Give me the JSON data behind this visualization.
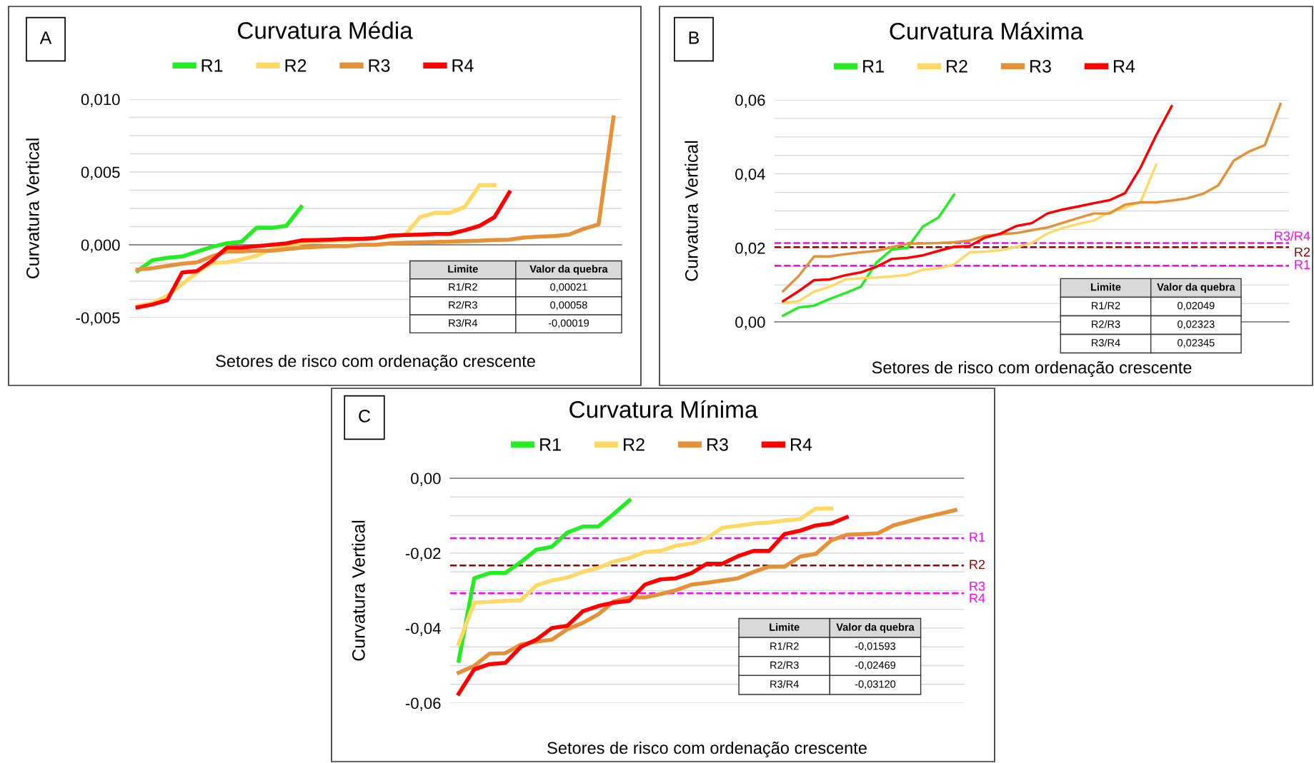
{
  "chart_data": [
    {
      "type": "line",
      "title": "Curvatura Média",
      "xlabel": "Setores de risco com ordenação crescente",
      "ylabel": "Curvatura Vertical",
      "categories": [
        null,
        null,
        null,
        null,
        null,
        null,
        null,
        null,
        null,
        null,
        null,
        null,
        null,
        null,
        null,
        null,
        null,
        null,
        null,
        null,
        null,
        null,
        null,
        null,
        null,
        null,
        null,
        null,
        null,
        null,
        null,
        null,
        null
      ],
      "series": [
        {
          "name": "R1",
          "color": "#22ee22",
          "values": [
            -0.0018,
            -0.00106,
            -0.0009,
            -0.0008,
            -0.00047,
            -0.00014,
            0.0001,
            0.00022,
            0.00117,
            0.00117,
            0.0013,
            0.0026,
            null,
            null,
            null,
            null,
            null,
            null,
            null,
            null,
            null,
            null,
            null,
            null,
            null,
            null,
            null,
            null,
            null,
            null,
            null,
            null,
            null
          ]
        },
        {
          "name": "R2",
          "color": "#ffd966",
          "values": [
            -0.0042,
            -0.004,
            -0.0035,
            -0.0027,
            -0.0019,
            -0.00125,
            -0.0012,
            -0.001,
            -0.00075,
            -0.0003,
            -0.0001,
            0.00014,
            0.0002,
            0.00028,
            0.0003,
            0.0004,
            0.00047,
            0.00055,
            0.0007,
            0.0019,
            0.0022,
            0.0022,
            0.0026,
            0.0041,
            0.0041,
            null,
            null,
            null,
            null,
            null,
            null,
            null,
            null
          ]
        },
        {
          "name": "R3",
          "color": "#e69138",
          "values": [
            -0.0017,
            -0.0016,
            -0.00145,
            -0.0013,
            -0.0012,
            -0.0008,
            -0.00045,
            -0.00045,
            -0.0004,
            -0.0004,
            -0.0003,
            -0.0002,
            -0.00014,
            -0.0001,
            -0.0001,
            0,
            0,
            0.0001,
            0.00014,
            0.00017,
            0.0002,
            0.00022,
            0.00025,
            0.00028,
            0.00033,
            0.00036,
            0.0005,
            0.00056,
            0.0006,
            0.0007,
            0.0011,
            0.0014,
            0.00875
          ]
        },
        {
          "name": "R4",
          "color": "#ff0000",
          "values": [
            -0.0043,
            -0.0041,
            -0.0038,
            -0.0019,
            -0.0018,
            -0.0011,
            -0.0002,
            -0.0002,
            -0.0001,
            0,
            0.0001,
            0.0003,
            0.00033,
            0.00036,
            0.0004,
            0.0004,
            0.00047,
            0.00064,
            0.00067,
            0.0007,
            0.00075,
            0.00075,
            0.001,
            0.0013,
            0.0019,
            0.0036,
            null,
            null,
            null,
            null,
            null,
            null,
            null
          ]
        }
      ],
      "ylim": [
        -0.005,
        0.01
      ],
      "yticks": [
        {
          "value": -0.005,
          "label": "-0,005"
        },
        {
          "value": -0.00375,
          "label": null
        },
        {
          "value": -0.0025,
          "label": null
        },
        {
          "value": -0.00125,
          "label": null
        },
        {
          "value": 0,
          "label": "0,000"
        },
        {
          "value": 0.00125,
          "label": null
        },
        {
          "value": 0.0025,
          "label": null
        },
        {
          "value": 0.00375,
          "label": null
        },
        {
          "value": 0.005,
          "label": "0,005"
        },
        {
          "value": 0.00625,
          "label": null
        },
        {
          "value": 0.0075,
          "label": null
        },
        {
          "value": 0.00875,
          "label": null
        },
        {
          "value": 0.01,
          "label": "0,010"
        }
      ],
      "grid": "y",
      "legend": "top",
      "tick_labels": "y",
      "annotations": [
        "A",
        "Limite",
        "Valor da quebra",
        "R1/R2",
        "0,00021",
        "R2/R3",
        "0,00058",
        "R3/R4",
        "-0,00019"
      ]
    },
    {
      "type": "line",
      "title": "Curvatura Máxima",
      "xlabel": "Setores de risco com ordenação crescente",
      "ylabel": "Curvatura Vertical",
      "categories": [
        null,
        null,
        null,
        null,
        null,
        null,
        null,
        null,
        null,
        null,
        null,
        null,
        null,
        null,
        null,
        null,
        null,
        null,
        null,
        null,
        null,
        null,
        null,
        null,
        null,
        null,
        null,
        null,
        null,
        null,
        null,
        null,
        null
      ],
      "series": [
        {
          "name": "R1",
          "color": "#22ee22",
          "values": [
            0.0017,
            0.0039,
            0.0044,
            0.0062,
            0.0078,
            0.0095,
            0.016,
            0.0196,
            0.02,
            0.0258,
            0.0282,
            0.0344,
            null,
            null,
            null,
            null,
            null,
            null,
            null,
            null,
            null,
            null,
            null,
            null,
            null,
            null,
            null,
            null,
            null,
            null,
            null,
            null,
            null
          ]
        },
        {
          "name": "R2",
          "color": "#ffd966",
          "values": [
            0.0051,
            0.0056,
            0.0082,
            0.0095,
            0.0115,
            0.0118,
            0.012,
            0.0123,
            0.0127,
            0.0141,
            0.0145,
            0.0155,
            0.0188,
            0.019,
            0.0194,
            0.0203,
            0.0213,
            0.0239,
            0.0254,
            0.0265,
            0.0274,
            0.0297,
            0.0309,
            0.0324,
            0.0425,
            null,
            null,
            null,
            null,
            null,
            null,
            null,
            null
          ]
        },
        {
          "name": "R3",
          "color": "#e69138",
          "values": [
            0.0083,
            0.0124,
            0.0177,
            0.0177,
            0.0183,
            0.0188,
            0.0192,
            0.0202,
            0.0211,
            0.0212,
            0.0213,
            0.0215,
            0.022,
            0.0233,
            0.0237,
            0.024,
            0.0248,
            0.0255,
            0.0268,
            0.0281,
            0.0293,
            0.0293,
            0.0317,
            0.0323,
            0.0323,
            0.0328,
            0.0334,
            0.0346,
            0.0369,
            0.0436,
            0.0461,
            0.0478,
            0.0589
          ]
        },
        {
          "name": "R4",
          "color": "#ff0000",
          "values": [
            0.0056,
            0.0083,
            0.0113,
            0.0115,
            0.0126,
            0.0134,
            0.0149,
            0.017,
            0.0173,
            0.018,
            0.0192,
            0.0203,
            0.0205,
            0.0228,
            0.0239,
            0.0259,
            0.0267,
            0.0293,
            0.0304,
            0.0312,
            0.0321,
            0.0329,
            0.0348,
            0.0417,
            0.0504,
            0.0583,
            null,
            null,
            null,
            null,
            null,
            null,
            null
          ]
        }
      ],
      "ylim": [
        0,
        0.06
      ],
      "yticks": [
        {
          "value": 0,
          "label": "0,00"
        },
        {
          "value": 0.005,
          "label": null
        },
        {
          "value": 0.01,
          "label": null
        },
        {
          "value": 0.015,
          "label": null
        },
        {
          "value": 0.02,
          "label": "0,02"
        },
        {
          "value": 0.025,
          "label": null
        },
        {
          "value": 0.03,
          "label": null
        },
        {
          "value": 0.035,
          "label": null
        },
        {
          "value": 0.04,
          "label": "0,04"
        },
        {
          "value": 0.045,
          "label": null
        },
        {
          "value": 0.05,
          "label": null
        },
        {
          "value": 0.055,
          "label": null
        },
        {
          "value": 0.06,
          "label": "0,06"
        }
      ],
      "grid": "y",
      "legend": "top",
      "tick_labels": "y",
      "ref_lines": [
        {
          "axis": "y",
          "value": 0.0213,
          "label": "R3/R4",
          "color": "#ff00ff",
          "line_style": "dashed"
        },
        {
          "axis": "y",
          "value": 0.0202,
          "label": "R2",
          "color": "#990000",
          "line_style": "dashed"
        },
        {
          "axis": "y",
          "value": 0.0152,
          "label": "R1",
          "color": "#ff00ff",
          "line_style": "dashed"
        }
      ],
      "annotations": [
        "B",
        "Limite",
        "Valor da quebra",
        "R1/R2",
        "0,02049",
        "R2/R3",
        "0,02323",
        "R3/R4",
        "0,02345"
      ]
    },
    {
      "type": "line",
      "title": "Curvatura Mínima",
      "xlabel": "Setores de risco com ordenação crescente",
      "ylabel": "Curvatura Vertical",
      "categories": [
        null,
        null,
        null,
        null,
        null,
        null,
        null,
        null,
        null,
        null,
        null,
        null,
        null,
        null,
        null,
        null,
        null,
        null,
        null,
        null,
        null,
        null,
        null,
        null,
        null,
        null,
        null,
        null,
        null,
        null,
        null,
        null,
        null
      ],
      "series": [
        {
          "name": "R1",
          "color": "#22ee22",
          "values": [
            -0.0487,
            -0.0267,
            -0.0253,
            -0.0253,
            -0.0224,
            -0.0191,
            -0.0183,
            -0.0145,
            -0.0129,
            -0.0129,
            -0.0095,
            -0.0059,
            null,
            null,
            null,
            null,
            null,
            null,
            null,
            null,
            null,
            null,
            null,
            null,
            null,
            null,
            null,
            null,
            null,
            null,
            null,
            null,
            null
          ]
        },
        {
          "name": "R2",
          "color": "#ffd966",
          "values": [
            -0.0442,
            -0.0332,
            -0.033,
            -0.0327,
            -0.0326,
            -0.0286,
            -0.0273,
            -0.0265,
            -0.025,
            -0.0239,
            -0.0222,
            -0.0213,
            -0.0197,
            -0.0194,
            -0.018,
            -0.0174,
            -0.016,
            -0.0132,
            -0.0127,
            -0.0121,
            -0.0118,
            -0.0113,
            -0.0109,
            -0.0081,
            -0.0081,
            null,
            null,
            null,
            null,
            null,
            null,
            null,
            null
          ]
        },
        {
          "name": "R3",
          "color": "#e69138",
          "values": [
            -0.0519,
            -0.0501,
            -0.0468,
            -0.0467,
            -0.0444,
            -0.0436,
            -0.0431,
            -0.0403,
            -0.0386,
            -0.0363,
            -0.0329,
            -0.0318,
            -0.0318,
            -0.0309,
            -0.0299,
            -0.0284,
            -0.0279,
            -0.0273,
            -0.0267,
            -0.025,
            -0.0236,
            -0.0236,
            -0.0209,
            -0.0202,
            -0.0166,
            -0.0151,
            -0.0149,
            -0.0147,
            -0.0126,
            -0.0115,
            -0.0104,
            -0.0095,
            -0.0085
          ]
        },
        {
          "name": "R4",
          "color": "#ff0000",
          "values": [
            -0.0575,
            -0.051,
            -0.0496,
            -0.0493,
            -0.045,
            -0.0431,
            -0.04,
            -0.0394,
            -0.0355,
            -0.0341,
            -0.0332,
            -0.0327,
            -0.0284,
            -0.027,
            -0.0267,
            -0.0253,
            -0.0228,
            -0.0228,
            -0.0208,
            -0.0194,
            -0.0194,
            -0.0149,
            -0.014,
            -0.0126,
            -0.0121,
            -0.0104,
            null,
            null,
            null,
            null,
            null,
            null,
            null
          ]
        }
      ],
      "ylim": [
        -0.06,
        0
      ],
      "yticks": [
        {
          "value": -0.06,
          "label": "-0,06"
        },
        {
          "value": -0.055,
          "label": null
        },
        {
          "value": -0.05,
          "label": null
        },
        {
          "value": -0.045,
          "label": null
        },
        {
          "value": -0.04,
          "label": "-0,04"
        },
        {
          "value": -0.035,
          "label": null
        },
        {
          "value": -0.03,
          "label": null
        },
        {
          "value": -0.025,
          "label": null
        },
        {
          "value": -0.02,
          "label": "-0,02"
        },
        {
          "value": -0.015,
          "label": null
        },
        {
          "value": -0.01,
          "label": null
        },
        {
          "value": -0.005,
          "label": null
        },
        {
          "value": 0,
          "label": "0,00"
        }
      ],
      "grid": "y",
      "legend": "top",
      "tick_labels": "y",
      "ref_lines": [
        {
          "axis": "y",
          "value": -0.016,
          "label": "R1",
          "color": "#ff00ff",
          "line_style": "dashed"
        },
        {
          "axis": "y",
          "value": -0.0233,
          "label": "R2",
          "color": "#990000",
          "line_style": "dashed"
        },
        {
          "axis": "y",
          "value": -0.0307,
          "label": "R3",
          "color": "#ff00ff",
          "line_style": "dashed"
        }
      ],
      "annotations": [
        "C",
        "Limite",
        "Valor da quebra",
        "R1/R2",
        "-0,01593",
        "R2/R3",
        "-0,02469",
        "R3/R4",
        "-0,03120",
        "R4"
      ]
    }
  ]
}
